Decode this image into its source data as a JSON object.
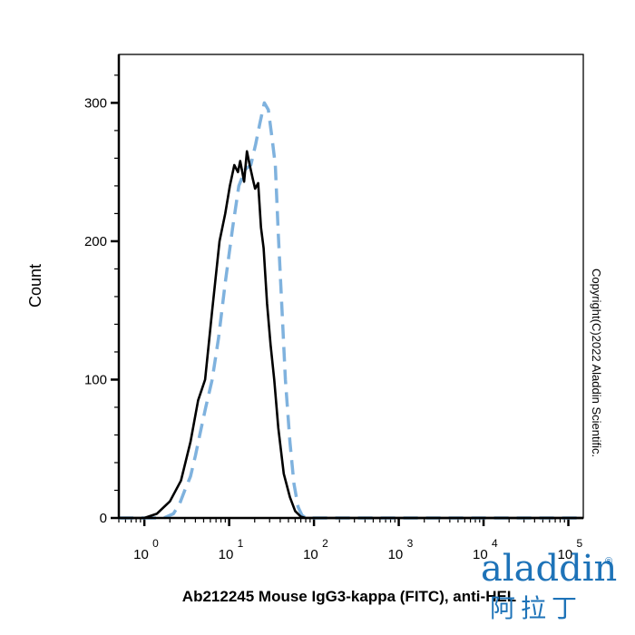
{
  "chart_data": {
    "type": "line",
    "title": "",
    "xlabel": "Ab212245 Mouse IgG3-kappa (FITC), anti-HEL",
    "ylabel": "Count",
    "xscale": "log",
    "xlim": [
      0.5,
      150000
    ],
    "ylim": [
      0,
      335
    ],
    "y_ticks": [
      0,
      100,
      200,
      300
    ],
    "x_ticks": [
      {
        "base": "10",
        "exp": "0",
        "value": 1
      },
      {
        "base": "10",
        "exp": "1",
        "value": 10
      },
      {
        "base": "10",
        "exp": "2",
        "value": 100
      },
      {
        "base": "10",
        "exp": "3",
        "value": 1000
      },
      {
        "base": "10",
        "exp": "4",
        "value": 10000
      },
      {
        "base": "10",
        "exp": "5",
        "value": 100000
      }
    ],
    "grid": false,
    "series": [
      {
        "style": "solid",
        "color": "#000000",
        "x": [
          0.5,
          1.0,
          1.4,
          2.0,
          2.7,
          3.5,
          4.3,
          5.2,
          6.3,
          7.7,
          9.0,
          10.2,
          11.5,
          12.7,
          13.5,
          15.0,
          16.2,
          17.5,
          19.0,
          20.2,
          22.0,
          23.7,
          25.5,
          28.0,
          30.8,
          34.0,
          38.0,
          44.0,
          52.0,
          60.0,
          70.0,
          80.0,
          90.0,
          150000
        ],
        "y": [
          0,
          0,
          3,
          12,
          27,
          55,
          85,
          100,
          150,
          200,
          220,
          240,
          255,
          250,
          258,
          243,
          265,
          255,
          245,
          238,
          242,
          210,
          195,
          155,
          125,
          100,
          65,
          32,
          15,
          5,
          1,
          0,
          0,
          0
        ]
      },
      {
        "style": "dashed",
        "color": "#7fb2de",
        "x": [
          0.5,
          1.7,
          2.2,
          2.6,
          3.0,
          3.5,
          4.0,
          4.5,
          5.3,
          6.3,
          7.5,
          9.0,
          11.0,
          13.0,
          15.5,
          18.0,
          20.5,
          23.0,
          26.0,
          29.0,
          32.0,
          35.0,
          38.0,
          42.0,
          46.0,
          52.0,
          58.0,
          65.0,
          72.0,
          80.0,
          90.0,
          150000
        ],
        "y": [
          0,
          0,
          3,
          10,
          20,
          30,
          45,
          60,
          80,
          100,
          130,
          170,
          210,
          240,
          252,
          255,
          270,
          285,
          300,
          295,
          275,
          255,
          205,
          150,
          100,
          55,
          25,
          8,
          2,
          0,
          0,
          0
        ]
      }
    ]
  },
  "copyright": "Copyright(C)2022 Aladdin Scientific.",
  "logo": {
    "text": "aladdin",
    "trademark": "®",
    "chinese": "阿拉丁",
    "colors": {
      "primary": "#1e73b8",
      "accent": "#d7c43a"
    }
  }
}
